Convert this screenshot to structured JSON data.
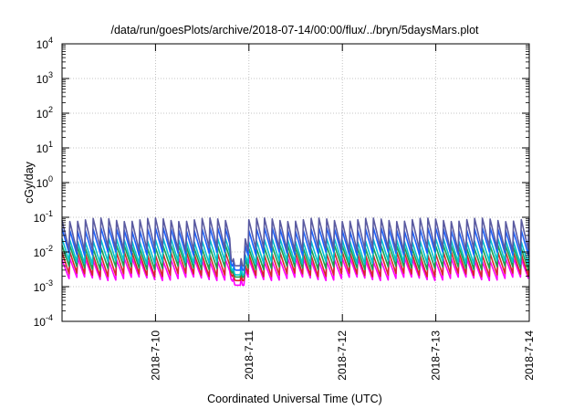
{
  "chart_data": {
    "type": "line",
    "title": "/data/run/goesPlots/archive/2018-07-14/00:00/flux/../bryn/5daysMars.plot",
    "xlabel": "Coordinated Universal Time (UTC)",
    "ylabel": "cGy/day",
    "y_scale": "log",
    "ylim_exponents": [
      -4,
      4
    ],
    "y_tick_labels": [
      {
        "base": "10",
        "exp": "4"
      },
      {
        "base": "10",
        "exp": "3"
      },
      {
        "base": "10",
        "exp": "2"
      },
      {
        "base": "10",
        "exp": "1"
      },
      {
        "base": "10",
        "exp": "0"
      },
      {
        "base": "10",
        "exp": "-1"
      },
      {
        "base": "10",
        "exp": "-2"
      },
      {
        "base": "10",
        "exp": "-3"
      },
      {
        "base": "10",
        "exp": "-4"
      }
    ],
    "xlim_days": [
      0,
      5
    ],
    "x_ticks": [
      {
        "day": 1,
        "label": "2018-7-10"
      },
      {
        "day": 2,
        "label": "2018-7-11"
      },
      {
        "day": 3,
        "label": "2018-7-12"
      },
      {
        "day": 4,
        "label": "2018-7-13"
      },
      {
        "day": 5,
        "label": "2018-7-14"
      }
    ],
    "grid": true,
    "legend": "none",
    "pattern": {
      "period_days": 0.0833,
      "cycles": 60,
      "dip_start_day": 1.8,
      "dip_end_day": 1.95
    },
    "series": [
      {
        "color": "#ff00ff",
        "values": {
          "peak": 0.006,
          "trough": 0.0017,
          "dip_min": 0.0011
        }
      },
      {
        "color": "#d42a2a",
        "values": {
          "peak": 0.009,
          "trough": 0.0022,
          "dip_min": 0.0015
        }
      },
      {
        "color": "#1aa050",
        "values": {
          "peak": 0.014,
          "trough": 0.0035,
          "dip_min": 0.0019
        }
      },
      {
        "color": "#00c0d0",
        "values": {
          "peak": 0.022,
          "trough": 0.005,
          "dip_min": 0.0022
        }
      },
      {
        "color": "#1a60ff",
        "values": {
          "peak": 0.045,
          "trough": 0.009,
          "dip_min": 0.003
        }
      },
      {
        "color": "#5a5aa0",
        "values": {
          "peak": 0.085,
          "trough": 0.012,
          "dip_min": 0.004
        }
      }
    ]
  }
}
